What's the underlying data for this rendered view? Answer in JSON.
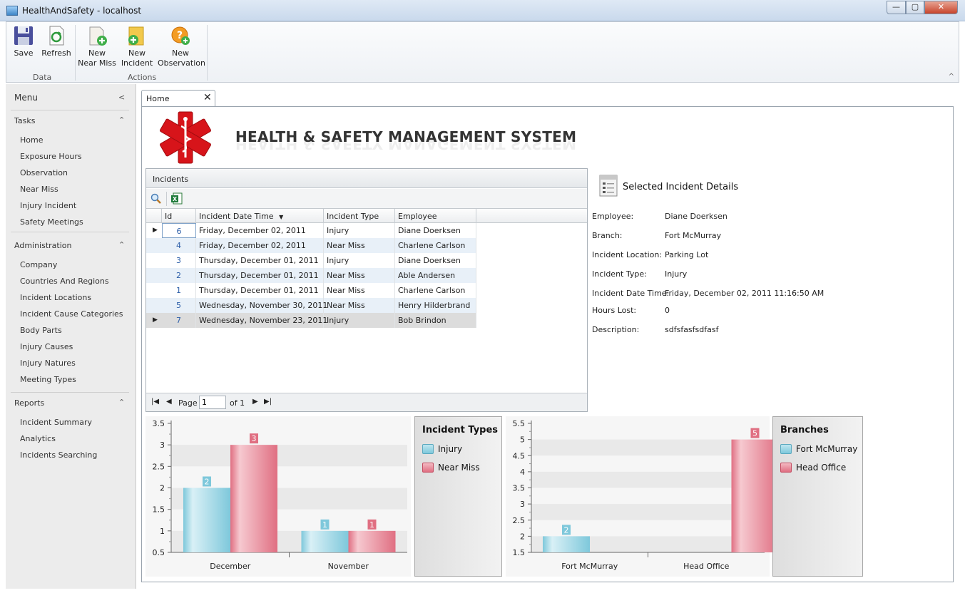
{
  "window": {
    "title": "HealthAndSafety - localhost",
    "min_glyph": "—",
    "max_glyph": "▢",
    "close_glyph": "✕"
  },
  "ribbon": {
    "save_label": "Save",
    "refresh_label": "Refresh",
    "data_group": "Data",
    "new_near_miss_line1": "New",
    "new_near_miss_line2": "Near Miss",
    "new_incident_line1": "New",
    "new_incident_line2": "Incident",
    "new_observation_line1": "New",
    "new_observation_line2": "Observation",
    "actions_group": "Actions",
    "collapse_glyph": "^"
  },
  "sidebar": {
    "menu_label": "Menu",
    "collapse_glyph": "<",
    "tasks_header": "Tasks",
    "tasks": [
      "Home",
      "Exposure Hours",
      "Observation",
      "Near Miss",
      "Injury Incident",
      "Safety Meetings"
    ],
    "admin_header": "Administration",
    "admin": [
      "Company",
      "Countries And Regions",
      "Incident Locations",
      "Incident Cause Categories",
      "Body Parts",
      "Injury Causes",
      "Injury Natures",
      "Meeting Types"
    ],
    "reports_header": "Reports",
    "reports": [
      "Incident Summary",
      "Analytics",
      "Incidents Searching"
    ]
  },
  "tab": {
    "label": "Home",
    "close_glyph": "✕"
  },
  "header": {
    "title": "HEALTH & SAFETY MANAGEMENT SYSTEM"
  },
  "grid": {
    "title": "Incidents",
    "columns": [
      "Id",
      "Incident Date Time",
      "Incident Type",
      "Employee"
    ],
    "sort_glyph": "▼",
    "rows": [
      {
        "id": "6",
        "date": "Friday, December 02, 2011",
        "type": "Injury",
        "employee": "Diane Doerksen"
      },
      {
        "id": "4",
        "date": "Friday, December 02, 2011",
        "type": "Near Miss",
        "employee": "Charlene Carlson"
      },
      {
        "id": "3",
        "date": "Thursday, December 01, 2011",
        "type": "Injury",
        "employee": "Diane Doerksen"
      },
      {
        "id": "2",
        "date": "Thursday, December 01, 2011",
        "type": "Near Miss",
        "employee": "Able Andersen"
      },
      {
        "id": "1",
        "date": "Thursday, December 01, 2011",
        "type": "Near Miss",
        "employee": "Charlene Carlson"
      },
      {
        "id": "5",
        "date": "Wednesday, November 30, 2011",
        "type": "Near Miss",
        "employee": "Henry Hilderbrand"
      },
      {
        "id": "7",
        "date": "Wednesday, November 23, 2011",
        "type": "Injury",
        "employee": "Bob Brindon"
      }
    ],
    "pager": {
      "page_label": "Page",
      "page_value": "1",
      "of_label": "of 1"
    }
  },
  "details": {
    "title": "Selected Incident Details",
    "fields": [
      {
        "label": "Employee:",
        "value": "Diane Doerksen"
      },
      {
        "label": "Branch:",
        "value": "Fort McMurray"
      },
      {
        "label": "Incident Location:",
        "value": "Parking Lot"
      },
      {
        "label": "Incident Type:",
        "value": "Injury"
      },
      {
        "label": "Incident Date Time:",
        "value": "Friday, December 02, 2011 11:16:50 AM"
      },
      {
        "label": "Hours Lost:",
        "value": "0"
      },
      {
        "label": "Description:",
        "value": "sdfsfasfsdfasf"
      }
    ]
  },
  "colors": {
    "injury": "#7ec8db",
    "near_miss": "#e06f82",
    "accent": "#2c5ea8"
  },
  "chart_data": [
    {
      "type": "bar",
      "categories": [
        "December",
        "November"
      ],
      "series": [
        {
          "name": "Injury",
          "values": [
            2,
            1
          ]
        },
        {
          "name": "Near Miss",
          "values": [
            3,
            1
          ]
        }
      ],
      "ylim": [
        0.5,
        3.5
      ],
      "yticks": [
        "0.5",
        "1",
        "1.5",
        "2",
        "2.5",
        "3",
        "3.5"
      ],
      "legend_title": "Incident Types",
      "legend": "right",
      "grid": true
    },
    {
      "type": "bar",
      "categories": [
        "Fort McMurray",
        "Head Office"
      ],
      "series": [
        {
          "name": "Fort McMurray",
          "values": [
            2,
            null
          ]
        },
        {
          "name": "Head Office",
          "values": [
            null,
            5
          ]
        }
      ],
      "ylim": [
        1.5,
        5.5
      ],
      "yticks": [
        "1.5",
        "2",
        "2.5",
        "3",
        "3.5",
        "4",
        "4.5",
        "5",
        "5.5"
      ],
      "legend_title": "Branches",
      "legend": "right",
      "grid": true
    }
  ]
}
